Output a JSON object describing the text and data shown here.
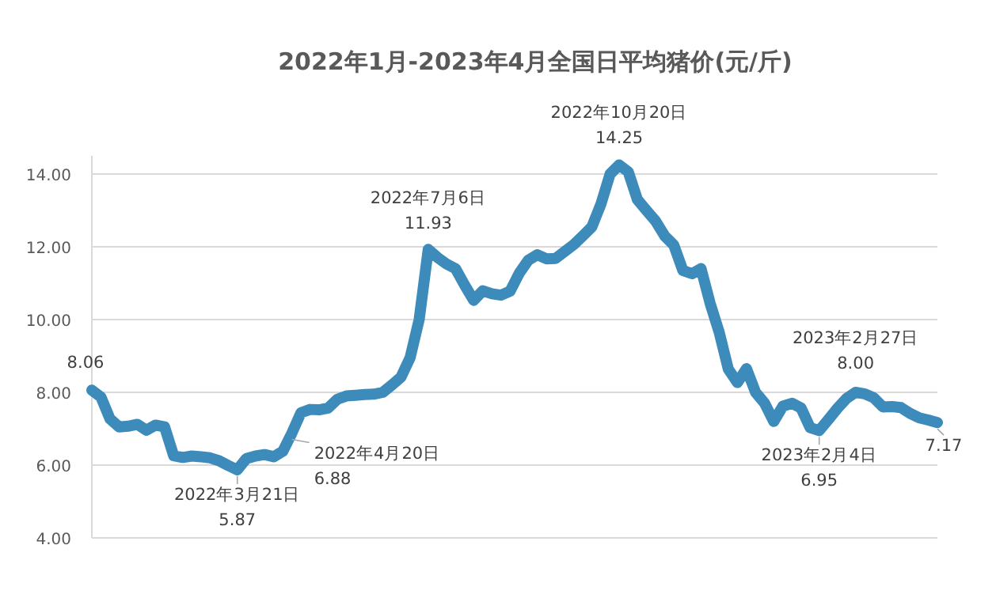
{
  "chart_data": {
    "type": "line",
    "title": "2022年1月-2023年4月全国日平均猪价(元/斤)",
    "categories": [
      null,
      null,
      null,
      null,
      null,
      null,
      null,
      null,
      null,
      null,
      null,
      null,
      null,
      null,
      null,
      null,
      null,
      null,
      null,
      null,
      null,
      null,
      null,
      null,
      null,
      null,
      null,
      null,
      null,
      null,
      null,
      null,
      null,
      null,
      null,
      null,
      null,
      null,
      null,
      null,
      null,
      null,
      null,
      null,
      null,
      null,
      null,
      null,
      null,
      null,
      null,
      null,
      null,
      null,
      null,
      null,
      null,
      null,
      null,
      null,
      null,
      null,
      null,
      null,
      null,
      null,
      null,
      null,
      null,
      null,
      null,
      null,
      null,
      null,
      null,
      null,
      null,
      null,
      null,
      null,
      null,
      null,
      null,
      null,
      null,
      null,
      null,
      null,
      null,
      null,
      null,
      null,
      null,
      null
    ],
    "ylim": [
      4,
      14.5
    ],
    "yticks": [
      {
        "value": 4,
        "label": "4.00"
      },
      {
        "value": 6,
        "label": "6.00"
      },
      {
        "value": 8,
        "label": "8.00"
      },
      {
        "value": 10,
        "label": "10.00"
      },
      {
        "value": 12,
        "label": "12.00"
      },
      {
        "value": 14,
        "label": "14.00"
      }
    ],
    "grid": "y",
    "tick_labels": "y",
    "series": [
      {
        "color": "#3d8bbb",
        "values": [
          8.06,
          7.87,
          7.27,
          7.05,
          7.07,
          7.12,
          6.96,
          7.1,
          7.05,
          6.26,
          6.21,
          6.25,
          6.23,
          6.2,
          6.12,
          5.99,
          5.87,
          6.18,
          6.25,
          6.29,
          6.23,
          6.38,
          6.88,
          7.44,
          7.53,
          7.52,
          7.57,
          7.81,
          7.9,
          7.92,
          7.94,
          7.95,
          8.0,
          8.2,
          8.42,
          8.95,
          10.0,
          11.93,
          11.71,
          11.53,
          11.4,
          10.95,
          10.53,
          10.79,
          10.71,
          10.67,
          10.78,
          11.27,
          11.63,
          11.78,
          11.67,
          11.68,
          11.87,
          12.06,
          12.3,
          12.55,
          13.18,
          14.0,
          14.25,
          14.06,
          13.3,
          13.0,
          12.71,
          12.3,
          12.05,
          11.35,
          11.26,
          11.4,
          10.45,
          9.65,
          8.64,
          8.27,
          8.65,
          8.0,
          7.7,
          7.2,
          7.62,
          7.7,
          7.57,
          7.03,
          6.95,
          7.25,
          7.56,
          7.83,
          8.0,
          7.96,
          7.85,
          7.6,
          7.61,
          7.58,
          7.42,
          7.3,
          7.24,
          7.17
        ],
        "value_labels": [
          "8.06",
          null,
          null,
          null,
          null,
          null,
          null,
          null,
          null,
          null,
          null,
          null,
          null,
          null,
          null,
          null,
          "2022年3月21日\n5.87",
          null,
          null,
          null,
          null,
          null,
          "2022年4月20日\n6.88",
          null,
          null,
          null,
          null,
          null,
          null,
          null,
          null,
          null,
          null,
          null,
          null,
          null,
          null,
          "2022年7月6日\n11.93",
          null,
          null,
          null,
          null,
          null,
          null,
          null,
          null,
          null,
          null,
          null,
          null,
          null,
          null,
          null,
          null,
          null,
          null,
          null,
          null,
          "2022年10月20日\n14.25",
          null,
          null,
          null,
          null,
          null,
          null,
          null,
          null,
          null,
          null,
          null,
          null,
          null,
          null,
          null,
          null,
          null,
          null,
          null,
          null,
          null,
          "2023年2月4日\n6.95",
          null,
          null,
          null,
          "2023年2月27日\n8.00",
          null,
          null,
          null,
          null,
          null,
          null,
          null,
          null,
          "7.17"
        ]
      }
    ]
  }
}
